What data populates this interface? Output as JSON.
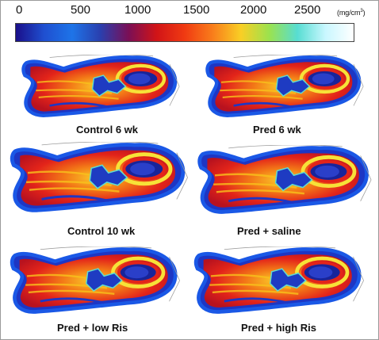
{
  "colorbar": {
    "ticks": [
      "0",
      "500",
      "1000",
      "1500",
      "2000",
      "2500"
    ],
    "unit_base": "(mg/cm",
    "unit_exp": "3",
    "unit_close": ")",
    "stops": [
      "#1a0f8a",
      "#1f4fd0",
      "#1e74e8",
      "#2a3fae",
      "#7a0f56",
      "#d11417",
      "#f03a12",
      "#f97e1b",
      "#f9cf25",
      "#9be24e",
      "#57ddd2",
      "#c9f7ff",
      "#ffffff"
    ]
  },
  "captions": {
    "control_6wk": "Control 6 wk",
    "pred_6wk": "Pred 6 wk",
    "control_10wk": "Control 10 wk",
    "pred_saline": "Pred + saline",
    "pred_low_ris": "Pred + low Ris",
    "pred_high_ris": "Pred + high Ris"
  }
}
